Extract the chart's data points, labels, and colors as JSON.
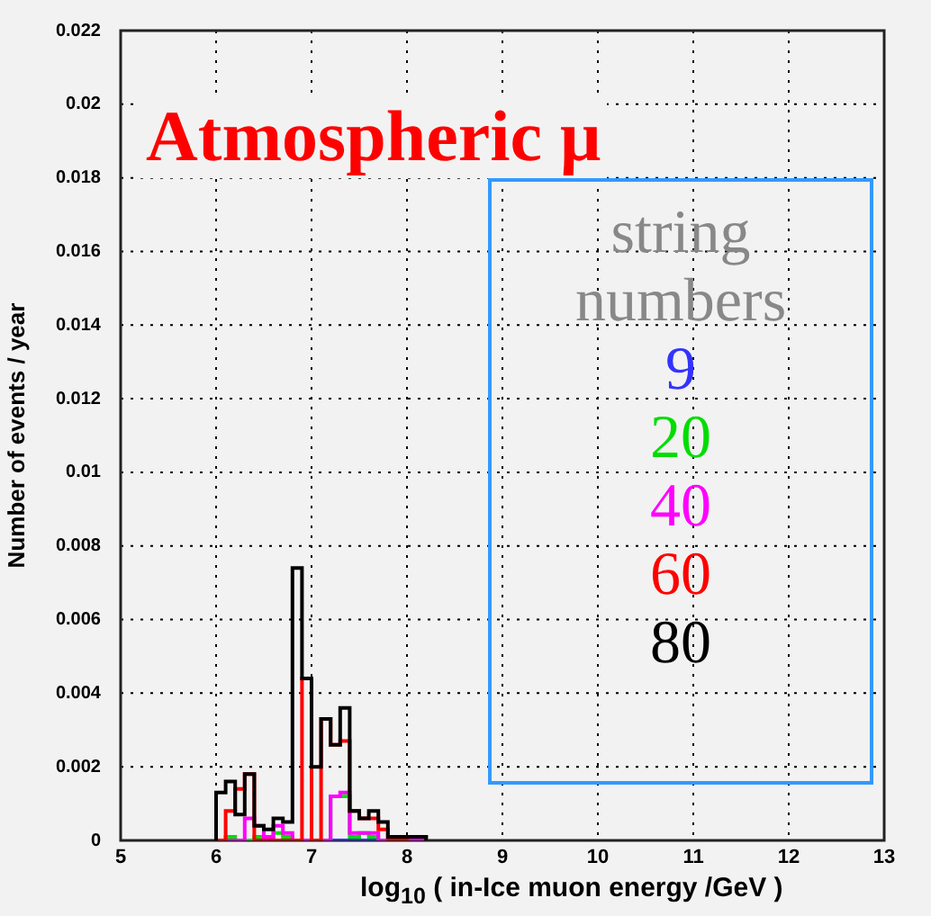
{
  "chart_data": {
    "type": "histogram",
    "title": "Atmospheric μ",
    "xlabel": "log$_{10}$ ( in-Ice muon energy /GeV )",
    "ylabel": "Number of events / year",
    "legend_title": "string numbers",
    "bins": [
      6.0,
      6.1,
      6.2,
      6.3,
      6.4,
      6.5,
      6.6,
      6.7,
      6.8,
      6.9,
      7.0,
      7.1,
      7.2,
      7.3,
      7.4,
      7.5,
      7.6,
      7.7,
      7.8,
      7.9,
      8.0,
      8.1,
      8.2
    ],
    "series": [
      {
        "name": "9",
        "color": "#3333ff",
        "values": [
          0,
          0,
          0,
          0,
          0,
          0,
          0,
          0,
          0,
          0,
          0,
          0,
          0,
          0,
          0,
          0,
          0,
          0,
          0,
          0,
          0.0001,
          0
        ]
      },
      {
        "name": "20",
        "color": "#00dd00",
        "values": [
          0,
          0.0001,
          0,
          0,
          0.0001,
          0.0001,
          0.0002,
          0.0001,
          0,
          0,
          0,
          0,
          0.0012,
          0.0012,
          0.0001,
          0.0002,
          0.0001,
          0,
          0,
          0.0001,
          0.0001,
          0.0001
        ]
      },
      {
        "name": "40",
        "color": "#ff00ff",
        "values": [
          0,
          0,
          0,
          0.0006,
          0.0004,
          0.0001,
          0.0004,
          0.0002,
          0,
          0,
          0,
          0,
          0.0012,
          0.0013,
          0.0002,
          0.0002,
          0.0002,
          0,
          0,
          0,
          0,
          0
        ]
      },
      {
        "name": "60",
        "color": "#ff0000",
        "values": [
          0,
          0.0008,
          0.0014,
          0.0018,
          0,
          0,
          0,
          0,
          0,
          0.0044,
          0,
          0.0033,
          0.0026,
          0.0027,
          0.0008,
          0.0006,
          0.0006,
          0.0003,
          0,
          0,
          0.0001,
          0.0001
        ]
      },
      {
        "name": "80",
        "color": "#000000",
        "values": [
          0.0013,
          0.0016,
          0.0007,
          0.0018,
          0.0004,
          0.0003,
          0.0006,
          0.0005,
          0.0074,
          0.0044,
          0.002,
          0.0033,
          0.0026,
          0.0036,
          0.0008,
          0.0006,
          0.0008,
          0.0005,
          0.0001,
          0.0001,
          0.0001,
          0.0001
        ]
      }
    ],
    "xlim": [
      5,
      13
    ],
    "xticks": [
      5,
      6,
      7,
      8,
      9,
      10,
      11,
      12,
      13
    ],
    "ylim": [
      0,
      0.022
    ],
    "yticks": [
      0,
      0.002,
      0.004,
      0.006,
      0.008,
      0.01,
      0.012,
      0.014,
      0.016,
      0.018,
      0.02,
      0.022
    ],
    "grid": true,
    "legend": "right"
  }
}
